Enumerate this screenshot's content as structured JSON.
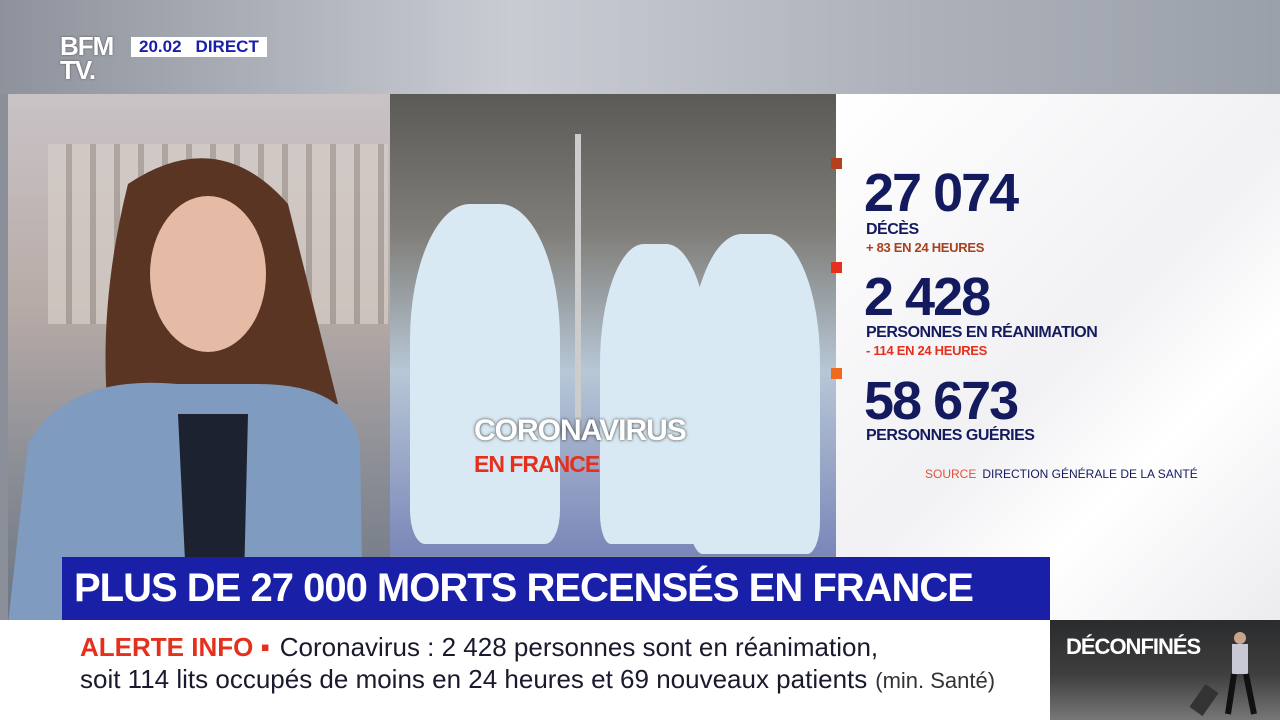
{
  "channel": {
    "logo": "BFM TV.",
    "time": "20.02",
    "live_label": "DIRECT"
  },
  "image_overlay": {
    "title": "CORONAVIRUS",
    "subtitle": "EN FRANCE"
  },
  "stats": [
    {
      "value": "27 074",
      "label": "DÉCÈS",
      "change": "+ 83 EN 24 HEURES",
      "marker_color": "#b5401c",
      "change_color": "#a8401c"
    },
    {
      "value": "2 428",
      "label": "PERSONNES EN RÉANIMATION",
      "change": "- 114 EN 24 HEURES",
      "marker_color": "#e4301c",
      "change_color": "#e4301c"
    },
    {
      "value": "58 673",
      "label": "PERSONNES GUÉRIES",
      "marker_color": "#f06a1c"
    }
  ],
  "source": {
    "label": "SOURCE",
    "text": "DIRECTION GÉNÉRALE DE LA SANTÉ"
  },
  "headline": "PLUS DE 27 000 MORTS RECENSÉS EN FRANCE",
  "ticker": {
    "alert": "ALERTE INFO ▪",
    "line1": "Coronavirus : 2 428 personnes sont en réanimation,",
    "line2": "soit 114 lits occupés de moins en 24 heures et 69 nouveaux patients",
    "attribution": "(min. Santé)"
  },
  "promo": {
    "title": "DÉCONFINÉS"
  },
  "colors": {
    "brand_blue": "#1a1fa8",
    "navy": "#141a5e",
    "alert_red": "#e4301c"
  }
}
